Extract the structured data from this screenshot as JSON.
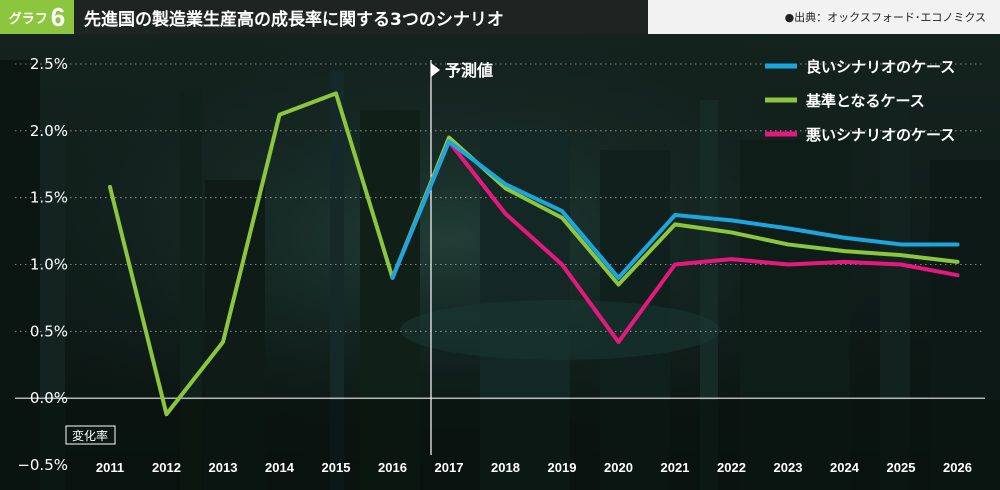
{
  "header": {
    "badge_label": "グラフ",
    "badge_number": "6",
    "title": "先進国の製造業生産高の成長率に関する3つのシナリオ",
    "source": "●出典：オックスフォード･エコノミクス"
  },
  "colors": {
    "good": "#1aa7e0",
    "base": "#8cc63f",
    "bad": "#e6187e",
    "background": "#0c1714",
    "header_bar": "#1d2421",
    "badge": "#8cc63f"
  },
  "chart_data": {
    "type": "line",
    "x": [
      "2011",
      "2012",
      "2013",
      "2014",
      "2015",
      "2016",
      "2017",
      "2018",
      "2019",
      "2020",
      "2021",
      "2022",
      "2023",
      "2024",
      "2025",
      "2026"
    ],
    "ylim": [
      -0.5,
      2.5
    ],
    "yticks": [
      "2.5%",
      "2.0%",
      "1.5%",
      "1.0%",
      "0.5%",
      "0.0%",
      "−0.5%"
    ],
    "ylabel": "変化率",
    "forecast_start": "2017",
    "forecast_label": "予測値",
    "grid": true,
    "legend_position": "top-right",
    "series": [
      {
        "name": "良いシナリオのケース",
        "color": "#1aa7e0",
        "x": [
          "2016",
          "2017",
          "2018",
          "2019",
          "2020",
          "2021",
          "2022",
          "2023",
          "2024",
          "2025",
          "2026"
        ],
        "values": [
          0.9,
          1.92,
          1.6,
          1.4,
          0.9,
          1.37,
          1.33,
          1.27,
          1.2,
          1.15,
          1.15
        ]
      },
      {
        "name": "基準となるケース",
        "color": "#8cc63f",
        "x": [
          "2011",
          "2012",
          "2013",
          "2014",
          "2015",
          "2016",
          "2017",
          "2018",
          "2019",
          "2020",
          "2021",
          "2022",
          "2023",
          "2024",
          "2025",
          "2026"
        ],
        "values": [
          1.58,
          -0.12,
          0.42,
          2.12,
          2.28,
          0.9,
          1.95,
          1.57,
          1.35,
          0.85,
          1.3,
          1.24,
          1.15,
          1.1,
          1.07,
          1.02
        ]
      },
      {
        "name": "悪いシナリオのケース",
        "color": "#e6187e",
        "x": [
          "2016",
          "2017",
          "2018",
          "2019",
          "2020",
          "2021",
          "2022",
          "2023",
          "2024",
          "2025",
          "2026"
        ],
        "values": [
          0.9,
          1.92,
          1.38,
          1.0,
          0.42,
          1.0,
          1.04,
          1.0,
          1.02,
          1.0,
          0.92
        ]
      }
    ]
  }
}
